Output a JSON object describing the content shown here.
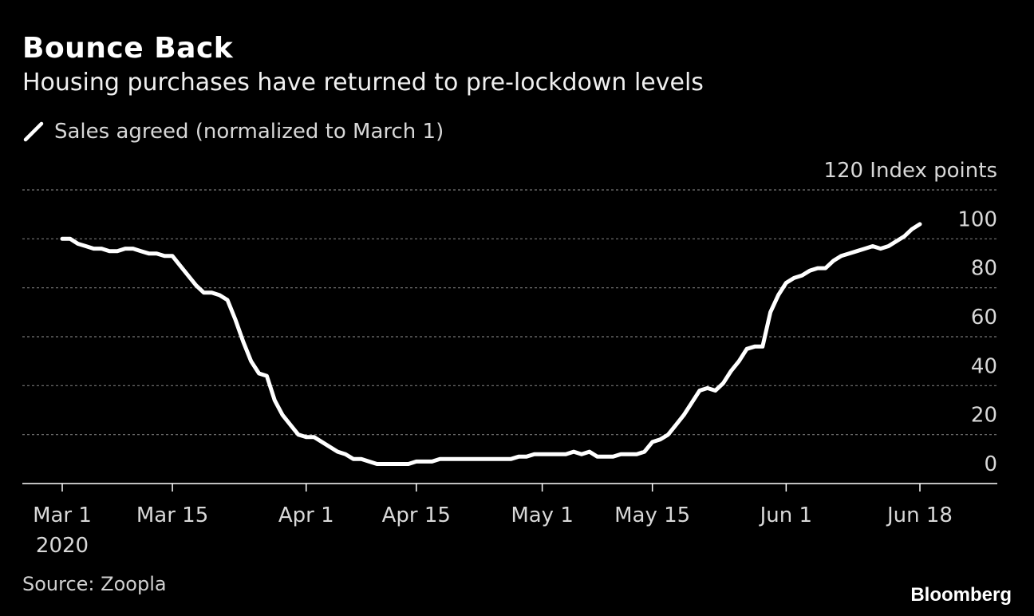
{
  "title": "Bounce Back",
  "subtitle": "Housing purchases have returned to pre-lockdown levels",
  "source": "Source: Zoopla",
  "brand": "Bloomberg",
  "colors": {
    "background": "#000000",
    "line": "#ffffff",
    "grid": "#777777",
    "text": "#d8d8d8"
  },
  "chart_data": {
    "type": "line",
    "title": "Bounce Back",
    "subtitle": "Housing purchases have returned to pre-lockdown levels",
    "ylabel": "Index points",
    "ylim": [
      0,
      120
    ],
    "y_ticks": [
      0,
      20,
      40,
      60,
      80,
      100,
      120
    ],
    "y_tick_labels": [
      "0",
      "20",
      "40",
      "60",
      "80",
      "100",
      "120 Index points"
    ],
    "x_ticks": [
      "2020-03-01",
      "2020-03-15",
      "2020-04-01",
      "2020-04-15",
      "2020-05-01",
      "2020-05-15",
      "2020-06-01",
      "2020-06-18"
    ],
    "x_tick_labels": [
      "Mar 1",
      "Mar 15",
      "Apr 1",
      "Apr 15",
      "May 1",
      "May 15",
      "Jun 1",
      "Jun 18"
    ],
    "x_tick_sublabels": [
      "2020",
      "",
      "",
      "",
      "",
      "",
      "",
      ""
    ],
    "grid": true,
    "legend_position": "top-left",
    "series": [
      {
        "name": "Sales agreed (normalized to March 1)",
        "color": "#ffffff",
        "x": [
          "2020-03-01",
          "2020-03-02",
          "2020-03-03",
          "2020-03-04",
          "2020-03-05",
          "2020-03-06",
          "2020-03-07",
          "2020-03-08",
          "2020-03-09",
          "2020-03-10",
          "2020-03-11",
          "2020-03-12",
          "2020-03-13",
          "2020-03-14",
          "2020-03-15",
          "2020-03-16",
          "2020-03-17",
          "2020-03-18",
          "2020-03-19",
          "2020-03-20",
          "2020-03-21",
          "2020-03-22",
          "2020-03-23",
          "2020-03-24",
          "2020-03-25",
          "2020-03-26",
          "2020-03-27",
          "2020-03-28",
          "2020-03-29",
          "2020-03-30",
          "2020-03-31",
          "2020-04-01",
          "2020-04-02",
          "2020-04-03",
          "2020-04-04",
          "2020-04-05",
          "2020-04-06",
          "2020-04-07",
          "2020-04-08",
          "2020-04-09",
          "2020-04-10",
          "2020-04-11",
          "2020-04-12",
          "2020-04-13",
          "2020-04-14",
          "2020-04-15",
          "2020-04-16",
          "2020-04-17",
          "2020-04-18",
          "2020-04-19",
          "2020-04-20",
          "2020-04-21",
          "2020-04-22",
          "2020-04-23",
          "2020-04-24",
          "2020-04-25",
          "2020-04-26",
          "2020-04-27",
          "2020-04-28",
          "2020-04-29",
          "2020-04-30",
          "2020-05-01",
          "2020-05-02",
          "2020-05-03",
          "2020-05-04",
          "2020-05-05",
          "2020-05-06",
          "2020-05-07",
          "2020-05-08",
          "2020-05-09",
          "2020-05-10",
          "2020-05-11",
          "2020-05-12",
          "2020-05-13",
          "2020-05-14",
          "2020-05-15",
          "2020-05-16",
          "2020-05-17",
          "2020-05-18",
          "2020-05-19",
          "2020-05-20",
          "2020-05-21",
          "2020-05-22",
          "2020-05-23",
          "2020-05-24",
          "2020-05-25",
          "2020-05-26",
          "2020-05-27",
          "2020-05-28",
          "2020-05-29",
          "2020-05-30",
          "2020-05-31",
          "2020-06-01",
          "2020-06-02",
          "2020-06-03",
          "2020-06-04",
          "2020-06-05",
          "2020-06-06",
          "2020-06-07",
          "2020-06-08",
          "2020-06-09",
          "2020-06-10",
          "2020-06-11",
          "2020-06-12",
          "2020-06-13",
          "2020-06-14",
          "2020-06-15",
          "2020-06-16",
          "2020-06-17",
          "2020-06-18"
        ],
        "values": [
          100,
          100,
          98,
          97,
          96,
          96,
          95,
          95,
          96,
          96,
          95,
          94,
          94,
          93,
          93,
          89,
          85,
          81,
          78,
          78,
          77,
          75,
          67,
          58,
          50,
          45,
          44,
          34,
          28,
          24,
          20,
          19,
          19,
          17,
          15,
          13,
          12,
          10,
          10,
          9,
          8,
          8,
          8,
          8,
          8,
          9,
          9,
          9,
          10,
          10,
          10,
          10,
          10,
          10,
          10,
          10,
          10,
          10,
          11,
          11,
          12,
          12,
          12,
          12,
          12,
          13,
          12,
          13,
          11,
          11,
          11,
          12,
          12,
          12,
          13,
          17,
          18,
          20,
          24,
          28,
          33,
          38,
          39,
          38,
          41,
          46,
          50,
          55,
          56,
          56,
          70,
          77,
          82,
          84,
          85,
          87,
          88,
          88,
          91,
          93,
          94,
          95,
          96,
          97,
          96,
          97,
          99,
          101,
          104,
          106
        ]
      }
    ]
  }
}
